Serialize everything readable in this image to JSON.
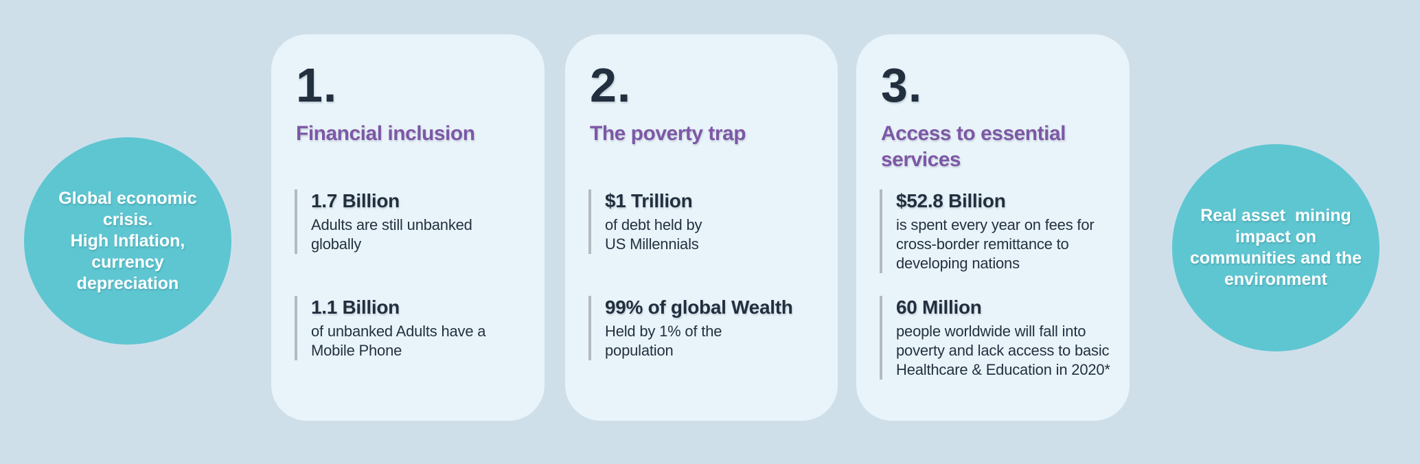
{
  "colors": {
    "background": "#cfdfea",
    "card_background": "#e9f4fa",
    "circle_teal": "#5ec6d1",
    "circle_text": "#ffffff",
    "heading_purple": "#7d58a6",
    "text_navy": "#222f3e",
    "stat_bar_gray": "#b3bac1"
  },
  "left_circle": {
    "lines": [
      "Global economic",
      "crisis.",
      "High Inflation,",
      "currency",
      "depreciation"
    ]
  },
  "right_circle": {
    "lines": [
      "Real asset  mining",
      "impact on",
      "communities and the",
      "environment"
    ]
  },
  "cards": [
    {
      "number": "1.",
      "title_lines": [
        "Financial inclusion"
      ],
      "stats": [
        {
          "value": "1.7 Billion",
          "desc_lines": [
            "Adults are still unbanked",
            "globally"
          ]
        },
        {
          "value": "1.1 Billion",
          "desc_lines": [
            "of unbanked Adults have a",
            "Mobile Phone"
          ]
        }
      ]
    },
    {
      "number": "2.",
      "title_lines": [
        "The poverty trap"
      ],
      "stats": [
        {
          "value": "$1 Trillion",
          "desc_lines": [
            "of debt held by",
            "US Millennials"
          ]
        },
        {
          "value": "99% of global Wealth",
          "desc_lines": [
            "Held by 1% of the",
            "population"
          ]
        }
      ]
    },
    {
      "number": "3.",
      "title_lines": [
        "Access to essential",
        "services"
      ],
      "stats": [
        {
          "value": "$52.8 Billion",
          "desc_lines": [
            "is spent every year on fees for",
            "cross-border remittance to",
            "developing nations"
          ]
        },
        {
          "value": "60 Million",
          "desc_lines": [
            "people worldwide will fall into",
            "poverty and lack access to basic",
            "Healthcare & Education in 2020*"
          ]
        }
      ]
    }
  ]
}
